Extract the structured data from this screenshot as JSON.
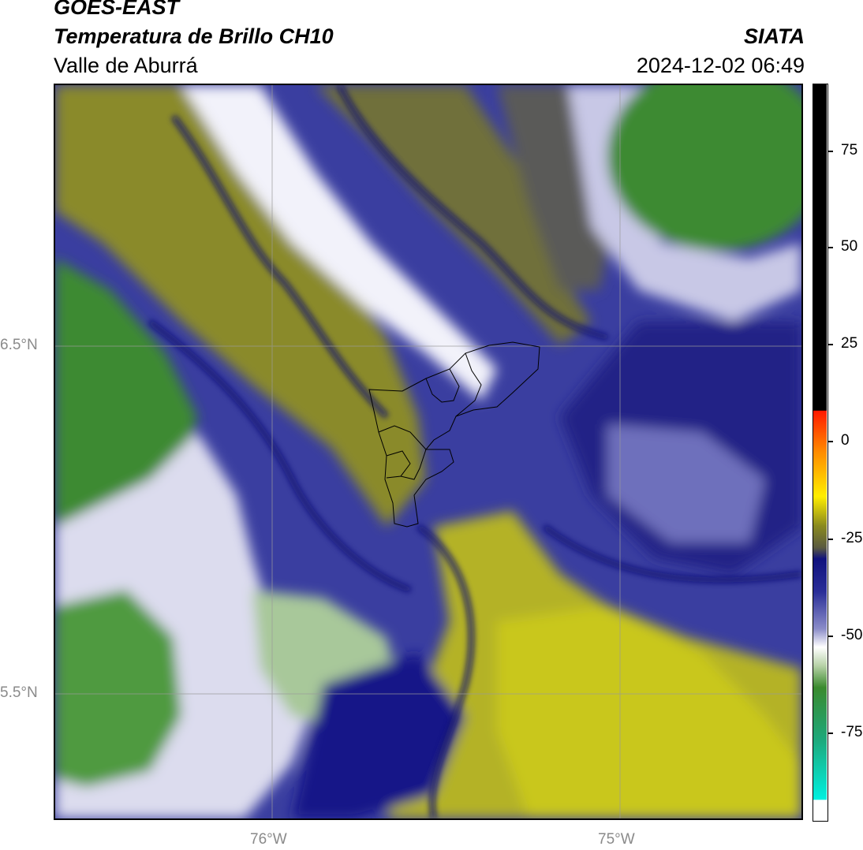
{
  "header": {
    "satellite": "GOES-EAST",
    "product": "Temperatura de Brillo CH10",
    "region": "Valle de Aburrá",
    "brand": "SIATA",
    "timestamp": "2024-12-02 06:49"
  },
  "axes": {
    "lat_ticks": [
      "6.5°N",
      "5.5°N"
    ],
    "lon_ticks": [
      "76°W",
      "75°W"
    ]
  },
  "colorbar": {
    "ticks": [
      "75",
      "50",
      "25",
      "0",
      "-25",
      "-50",
      "-75"
    ],
    "colors": {
      "hot": "#000000",
      "red": "#ff1a00",
      "orange": "#ff8c00",
      "yellow": "#ffee00",
      "olive": "#8a8a1e",
      "navy": "#10127e",
      "blue": "#4a4cb0",
      "white": "#ffffff",
      "green": "#3a8a2e",
      "teal": "#1ea87a",
      "cyan": "#00f0e0"
    }
  },
  "map": {
    "colors": {
      "olive": "#8a8a2a",
      "yellow": "#c6c420",
      "navy": "#0e1280",
      "blue": "#3a3ea0",
      "lavender": "#8a8ccc",
      "white": "#f2f2fa",
      "green": "#3e8a32",
      "lightgreen": "#a8c89a"
    }
  }
}
